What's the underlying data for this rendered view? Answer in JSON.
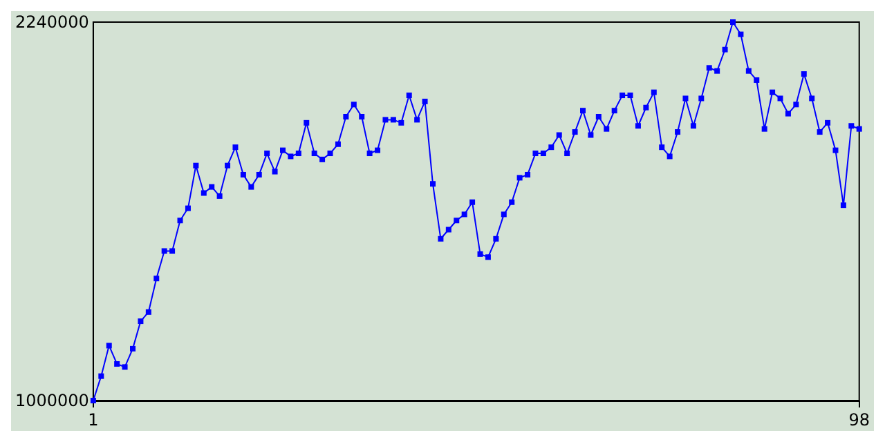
{
  "chart_data": {
    "type": "line",
    "marker": "square",
    "line_style": "solid",
    "grid": false,
    "x": [
      1,
      2,
      3,
      4,
      5,
      6,
      7,
      8,
      9,
      10,
      11,
      12,
      13,
      14,
      15,
      16,
      17,
      18,
      19,
      20,
      21,
      22,
      23,
      24,
      25,
      26,
      27,
      28,
      29,
      30,
      31,
      32,
      33,
      34,
      35,
      36,
      37,
      38,
      39,
      40,
      41,
      42,
      43,
      44,
      45,
      46,
      47,
      48,
      49,
      50,
      51,
      52,
      53,
      54,
      55,
      56,
      57,
      58,
      59,
      60,
      61,
      62,
      63,
      64,
      65,
      66,
      67,
      68,
      69,
      70,
      71,
      72,
      73,
      74,
      75,
      76,
      77,
      78,
      79,
      80,
      81,
      82,
      83,
      84,
      85,
      86,
      87,
      88,
      89,
      90,
      91,
      92,
      93,
      94,
      95,
      96,
      97,
      98
    ],
    "series": [
      {
        "color": "#0000ff",
        "values": [
          1000000,
          1080000,
          1180000,
          1120000,
          1110000,
          1170000,
          1260000,
          1290000,
          1400000,
          1490000,
          1490000,
          1590000,
          1630000,
          1770000,
          1680000,
          1700000,
          1670000,
          1770000,
          1830000,
          1740000,
          1700000,
          1740000,
          1810000,
          1750000,
          1820000,
          1800000,
          1810000,
          1910000,
          1810000,
          1790000,
          1810000,
          1840000,
          1930000,
          1970000,
          1930000,
          1810000,
          1820000,
          1920000,
          1920000,
          1910000,
          2000000,
          1920000,
          1980000,
          1710000,
          1530000,
          1560000,
          1590000,
          1610000,
          1650000,
          1480000,
          1470000,
          1530000,
          1610000,
          1650000,
          1730000,
          1740000,
          1810000,
          1810000,
          1830000,
          1870000,
          1810000,
          1880000,
          1950000,
          1870000,
          1930000,
          1890000,
          1950000,
          2000000,
          2000000,
          1900000,
          1960000,
          2010000,
          1830000,
          1800000,
          1880000,
          1990000,
          1900000,
          1990000,
          2090000,
          2080000,
          2150000,
          2240000,
          2200000,
          2080000,
          2050000,
          1890000,
          2010000,
          1990000,
          1940000,
          1970000,
          2070000,
          1990000,
          1880000,
          1910000,
          1820000,
          1640000,
          1900000,
          1890000
        ]
      }
    ],
    "xlim": [
      1,
      98
    ],
    "xticks": [
      1,
      98
    ],
    "ylim": [
      1000000,
      2240000
    ],
    "yticks": [
      1000000,
      2240000
    ]
  }
}
